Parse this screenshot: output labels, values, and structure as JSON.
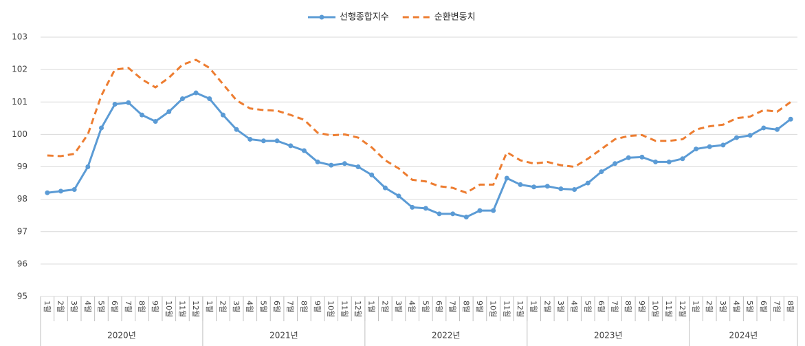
{
  "chart_data": {
    "type": "line",
    "categories": [
      "1월",
      "2월",
      "3월",
      "4월",
      "5월",
      "6월",
      "7월",
      "8월",
      "9월",
      "10월",
      "11월",
      "12월",
      "1월",
      "2월",
      "3월",
      "4월",
      "5월",
      "6월",
      "7월",
      "8월",
      "9월",
      "10월",
      "11월",
      "12월",
      "1월",
      "2월",
      "3월",
      "4월",
      "5월",
      "6월",
      "7월",
      "8월",
      "9월",
      "10월",
      "11월",
      "12월",
      "1월",
      "2월",
      "3월",
      "4월",
      "5월",
      "6월",
      "7월",
      "8월",
      "9월",
      "10월",
      "11월",
      "12월",
      "1월",
      "2월",
      "3월",
      "4월",
      "5월",
      "6월",
      "7월",
      "8월"
    ],
    "year_groups": [
      "2020년",
      "2021년",
      "2022년",
      "2023년",
      "2024년"
    ],
    "series": [
      {
        "name": "선행종합지수",
        "color": "#5b9bd5",
        "marker": true,
        "values": [
          98.2,
          98.25,
          98.3,
          99.0,
          100.2,
          100.93,
          100.98,
          100.6,
          100.4,
          100.7,
          101.1,
          101.28,
          101.1,
          100.6,
          100.15,
          99.85,
          99.8,
          99.8,
          99.65,
          99.5,
          99.15,
          99.05,
          99.1,
          99.0,
          98.75,
          98.35,
          98.1,
          97.75,
          97.72,
          97.55,
          97.55,
          97.45,
          97.65,
          97.65,
          98.65,
          98.45,
          98.38,
          98.4,
          98.32,
          98.3,
          98.5,
          98.85,
          99.1,
          99.28,
          99.3,
          99.15,
          99.15,
          99.25,
          99.55,
          99.62,
          99.67,
          99.9,
          99.97,
          100.2,
          100.15,
          100.47
        ]
      },
      {
        "name": "순환변동치",
        "color": "#ed7d31",
        "dashed": true,
        "values": [
          99.35,
          99.33,
          99.4,
          100.0,
          101.2,
          102.0,
          102.05,
          101.7,
          101.45,
          101.75,
          102.15,
          102.3,
          102.05,
          101.55,
          101.05,
          100.8,
          100.75,
          100.73,
          100.6,
          100.45,
          100.05,
          99.97,
          100.0,
          99.9,
          99.6,
          99.2,
          98.95,
          98.6,
          98.55,
          98.4,
          98.35,
          98.2,
          98.45,
          98.45,
          99.45,
          99.2,
          99.1,
          99.15,
          99.05,
          99.0,
          99.25,
          99.55,
          99.85,
          99.95,
          99.98,
          99.8,
          99.8,
          99.85,
          100.15,
          100.25,
          100.3,
          100.5,
          100.55,
          100.75,
          100.7,
          101.0
        ]
      }
    ],
    "ylim": [
      95,
      103
    ],
    "yticks": [
      95,
      96,
      97,
      98,
      99,
      100,
      101,
      102,
      103
    ],
    "grid": true
  }
}
